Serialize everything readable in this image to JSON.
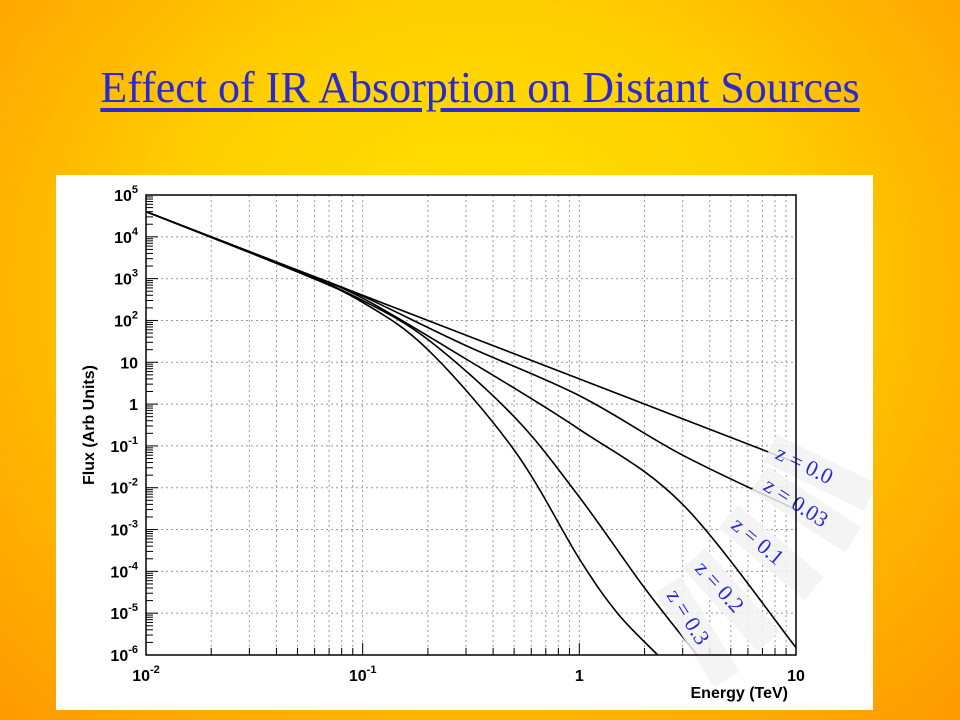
{
  "slide": {
    "title": "Effect of IR Absorption on Distant Sources"
  },
  "colors": {
    "title": "#2a2ad0",
    "background": "#ffcc00",
    "curve": "#000000",
    "label_text": "#2a2ad0"
  },
  "chart_data": {
    "type": "line",
    "xlabel": "Energy (TeV)",
    "ylabel": "Flux (Arb Units)",
    "xscale": "log",
    "yscale": "log",
    "xlim": [
      0.01,
      10
    ],
    "ylim": [
      1e-06,
      100000
    ],
    "grid": true,
    "x_tick_labels": [
      {
        "value": 0.01,
        "base": "10",
        "exp": "-2"
      },
      {
        "value": 0.1,
        "base": "10",
        "exp": "-1"
      },
      {
        "value": 1,
        "base": "1",
        "exp": ""
      },
      {
        "value": 10,
        "base": "10",
        "exp": ""
      }
    ],
    "y_tick_labels": [
      {
        "value": 1e-06,
        "base": "10",
        "exp": "-6"
      },
      {
        "value": 1e-05,
        "base": "10",
        "exp": "-5"
      },
      {
        "value": 0.0001,
        "base": "10",
        "exp": "-4"
      },
      {
        "value": 0.001,
        "base": "10",
        "exp": "-3"
      },
      {
        "value": 0.01,
        "base": "10",
        "exp": "-2"
      },
      {
        "value": 0.1,
        "base": "10",
        "exp": "-1"
      },
      {
        "value": 1,
        "base": "1",
        "exp": ""
      },
      {
        "value": 10,
        "base": "10",
        "exp": ""
      },
      {
        "value": 100,
        "base": "10",
        "exp": "2"
      },
      {
        "value": 1000,
        "base": "10",
        "exp": "3"
      },
      {
        "value": 10000,
        "base": "10",
        "exp": "4"
      },
      {
        "value": 100000,
        "base": "10",
        "exp": "5"
      }
    ],
    "series": [
      {
        "name": "z = 0.0",
        "x": [
          0.01,
          0.1,
          1,
          10
        ],
        "y": [
          40000,
          400,
          4,
          0.04
        ]
      },
      {
        "name": "z = 0.03",
        "x": [
          0.01,
          0.05,
          0.1,
          0.3,
          1,
          3,
          10
        ],
        "y": [
          40000,
          1600,
          380,
          25,
          1.6,
          0.06,
          0.003
        ]
      },
      {
        "name": "z = 0.1",
        "x": [
          0.01,
          0.05,
          0.1,
          0.3,
          1,
          3,
          10
        ],
        "y": [
          40000,
          1550,
          340,
          12,
          0.25,
          0.004,
          1.5e-06
        ]
      },
      {
        "name": "z = 0.2",
        "x": [
          0.01,
          0.05,
          0.1,
          0.2,
          0.5,
          1,
          2,
          3.5
        ],
        "y": [
          40000,
          1500,
          300,
          35,
          0.5,
          0.006,
          4e-05,
          1e-06
        ]
      },
      {
        "name": "z = 0.3",
        "x": [
          0.01,
          0.05,
          0.1,
          0.2,
          0.5,
          1,
          1.5,
          2.3
        ],
        "y": [
          40000,
          1450,
          270,
          20,
          0.08,
          0.0002,
          1e-05,
          1e-06
        ]
      }
    ]
  }
}
